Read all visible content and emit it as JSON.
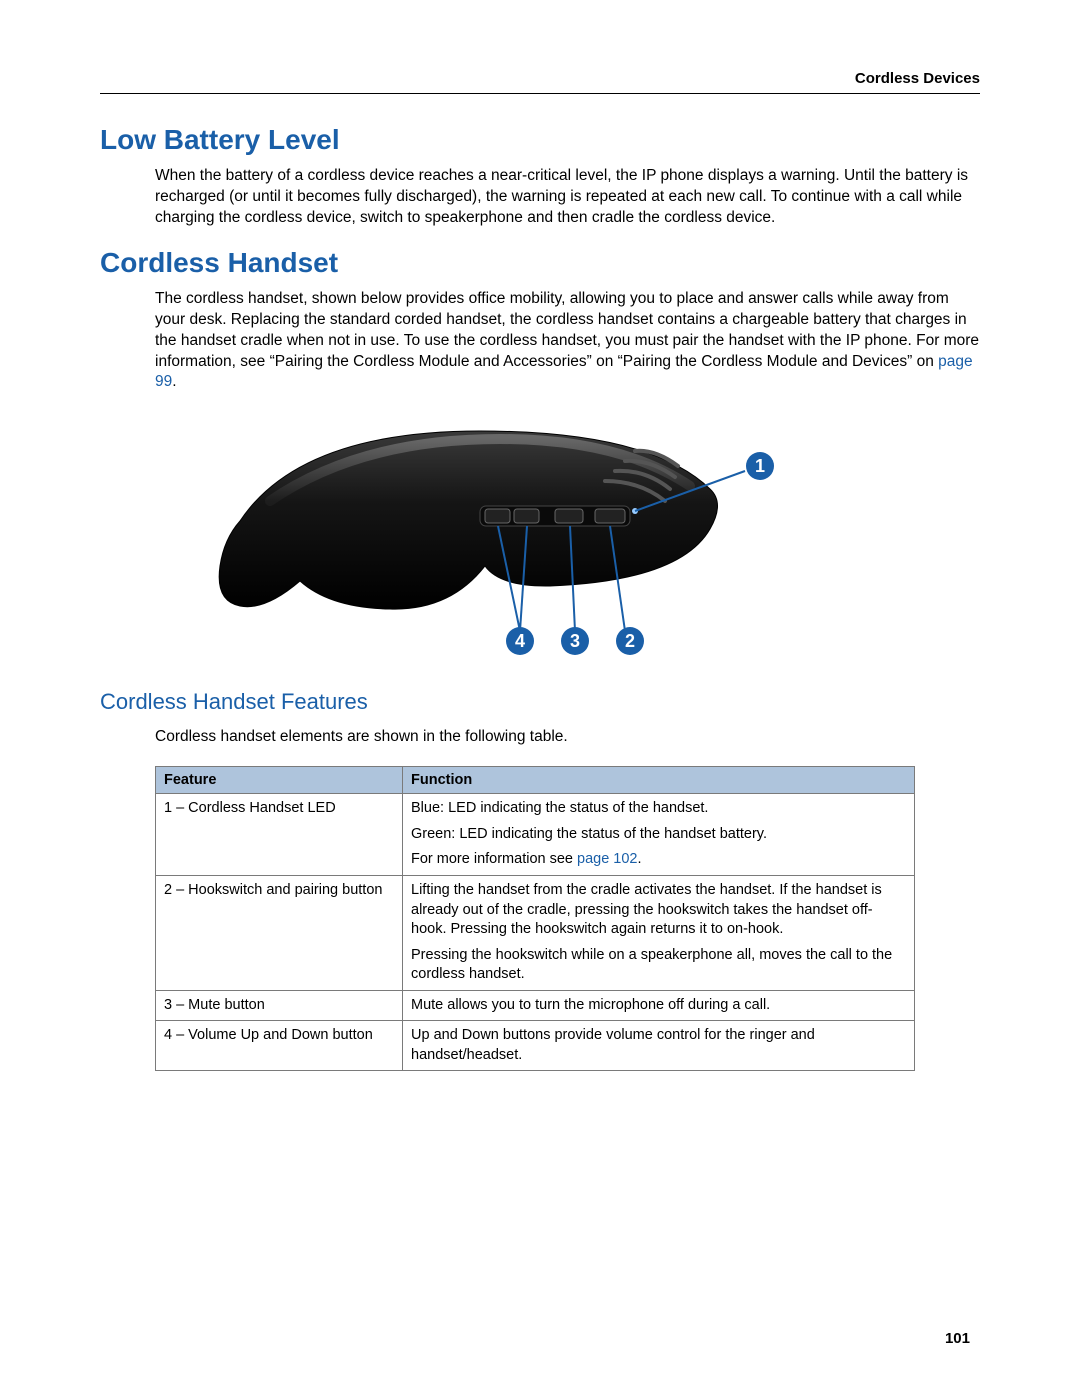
{
  "header": {
    "section": "Cordless Devices"
  },
  "section1": {
    "title": "Low Battery Level",
    "body": "When the battery of a cordless device reaches a near-critical level, the IP phone displays a warning. Until the battery is recharged (or until it becomes fully discharged), the warning is repeated at each new call. To continue with a call while charging the cordless device, switch to speakerphone and then cradle the cordless device."
  },
  "section2": {
    "title": "Cordless Handset",
    "body_pre": "The cordless handset, shown below provides office mobility, allowing you to place and answer calls while away from your desk. Replacing the standard corded handset, the cordless handset contains a chargeable battery that charges in the handset cradle when not in use. To use the cordless handset, you must pair the handset with the IP phone. For more information, see “Pairing the Cordless Module and Accessories” on “Pairing the Cordless Module and Devices” on ",
    "body_link": "page 99",
    "body_post": "."
  },
  "figure": {
    "callouts": [
      "1",
      "2",
      "3",
      "4"
    ]
  },
  "section3": {
    "title": "Cordless Handset Features",
    "intro": "Cordless handset elements are shown in the following table."
  },
  "table": {
    "columns": [
      "Feature",
      "Function"
    ],
    "rows": [
      {
        "feature": "1 – Cordless Handset LED",
        "paras": [
          {
            "text": "Blue: LED indicating the status of the handset."
          },
          {
            "text": "Green: LED indicating the status of the handset battery."
          },
          {
            "text_pre": "For more information see ",
            "link": "page 102",
            "text_post": "."
          }
        ]
      },
      {
        "feature": "2 – Hookswitch and pairing button",
        "paras": [
          {
            "text": "Lifting the handset from the cradle activates the handset. If the handset is already out of the cradle, pressing the hookswitch takes the handset off-hook. Pressing the hookswitch again returns it to on-hook."
          },
          {
            "text": "Pressing the hookswitch while on a speakerphone all, moves the call to the cordless handset."
          }
        ]
      },
      {
        "feature": "3 – Mute button",
        "paras": [
          {
            "text": "Mute allows you to turn the microphone off during a call."
          }
        ]
      },
      {
        "feature": "4 – Volume Up and Down button",
        "paras": [
          {
            "text": "Up and Down buttons provide volume control for the ringer and handset/headset."
          }
        ]
      }
    ]
  },
  "page_number": "101",
  "colors": {
    "heading": "#1a5fa8",
    "link": "#1a5fa8",
    "table_header_bg": "#aec4dc",
    "border": "#7a7a7a",
    "callout_fill": "#1a5fa8"
  }
}
